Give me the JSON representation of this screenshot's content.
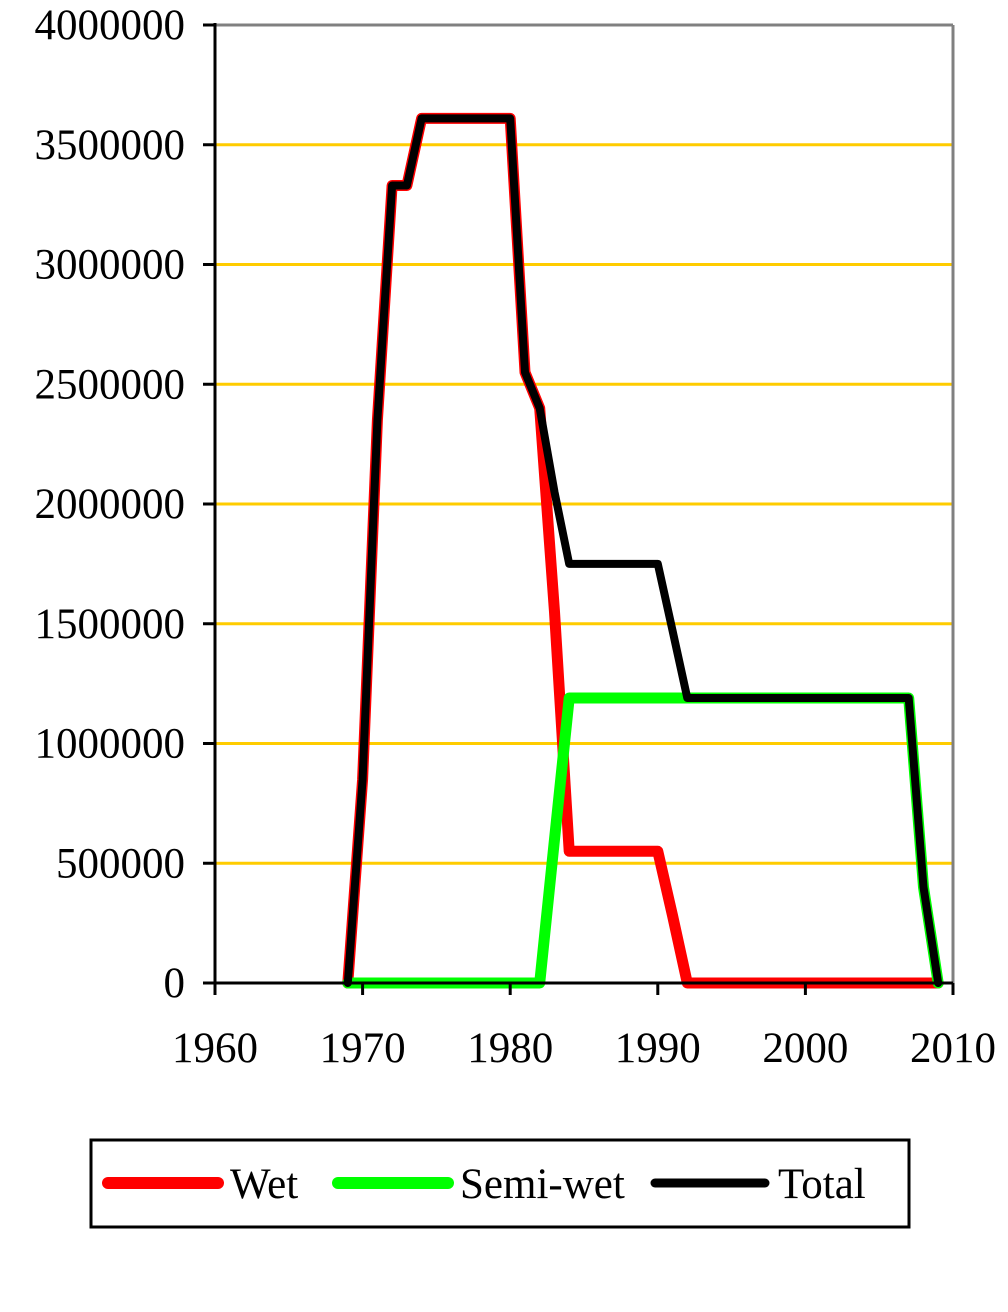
{
  "chart_data": {
    "type": "line",
    "title": "",
    "xlabel": "",
    "ylabel": "",
    "xlim": [
      1960,
      2010
    ],
    "ylim": [
      0,
      4000000
    ],
    "x_ticks": [
      1960,
      1970,
      1980,
      1990,
      2000,
      2010
    ],
    "y_ticks": [
      0,
      500000,
      1000000,
      1500000,
      2000000,
      2500000,
      3000000,
      3500000,
      4000000
    ],
    "grid": {
      "horizontal": true,
      "vertical": false,
      "color": "#ffcc00"
    },
    "legend_position": "bottom",
    "series": [
      {
        "name": "Wet",
        "color": "#ff0000",
        "x": [
          1969,
          1970,
          1971,
          1972,
          1973,
          1974,
          1980,
          1981,
          1982,
          1983,
          1984,
          1990,
          1991,
          1992,
          2009
        ],
        "values": [
          0,
          850000,
          2350000,
          3330000,
          3330000,
          3610000,
          3610000,
          2550000,
          2400000,
          1550000,
          550000,
          550000,
          280000,
          0,
          0
        ]
      },
      {
        "name": "Semi-wet",
        "color": "#00ff00",
        "x": [
          1969,
          1982,
          1983,
          1984,
          2007,
          2008,
          2009
        ],
        "values": [
          0,
          0,
          600000,
          1190000,
          1190000,
          400000,
          0
        ]
      },
      {
        "name": "Total",
        "color": "#000000",
        "x": [
          1969,
          1970,
          1971,
          1972,
          1973,
          1974,
          1980,
          1981,
          1982,
          1983,
          1984,
          1990,
          1991,
          1992,
          2007,
          2008,
          2009
        ],
        "values": [
          0,
          850000,
          2350000,
          3330000,
          3330000,
          3610000,
          3610000,
          2550000,
          2400000,
          2050000,
          1750000,
          1750000,
          1470000,
          1190000,
          1190000,
          400000,
          0
        ]
      }
    ]
  },
  "legend": {
    "items": [
      {
        "label": "Wet",
        "color": "#ff0000"
      },
      {
        "label": "Semi-wet",
        "color": "#00ff00"
      },
      {
        "label": "Total",
        "color": "#000000"
      }
    ]
  }
}
